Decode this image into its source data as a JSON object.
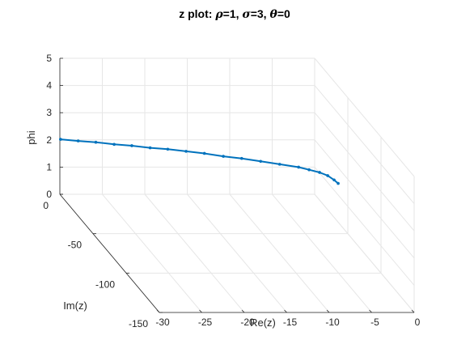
{
  "chart_data": {
    "type": "line",
    "title": {
      "prefix": "z plot: ",
      "sym_rho": "ρ",
      "rho_text": "=1, ",
      "sym_sigma": "σ",
      "sigma_text": "=3, ",
      "sym_theta": "θ",
      "theta_text": "=0"
    },
    "xlabel": "Re(z)",
    "ylabel": "Im(z)",
    "zlabel": "phi",
    "xlim": [
      -30,
      0
    ],
    "ylim": [
      -150,
      0
    ],
    "zlim": [
      0,
      5
    ],
    "x_ticks": [
      "-30",
      "-25",
      "-20",
      "-15",
      "-10",
      "-5",
      "0"
    ],
    "y_ticks": [
      "-150",
      "-100",
      "-50",
      "0"
    ],
    "z_ticks": [
      "0",
      "1",
      "2",
      "3",
      "4",
      "5"
    ],
    "grid": true,
    "series": [
      {
        "color": "#0072bd",
        "marker": ".",
        "x": [
          -30,
          -28,
          -26,
          -24,
          -22,
          -20,
          -18,
          -16,
          -14,
          -12,
          -10,
          -8,
          -6,
          -4,
          -3,
          -2,
          -1.2,
          -0.6,
          -0.2
        ],
        "y": [
          -1,
          -2,
          -3,
          -5,
          -6,
          -8,
          -9,
          -11,
          -13,
          -16,
          -18,
          -21,
          -24,
          -27,
          -30,
          -33,
          -35,
          -37,
          -38
        ],
        "z": [
          2.05,
          2.02,
          2.0,
          1.98,
          1.96,
          1.94,
          1.92,
          1.9,
          1.88,
          1.86,
          1.84,
          1.82,
          1.8,
          1.78,
          1.77,
          1.76,
          1.7,
          1.6,
          1.5
        ]
      }
    ]
  }
}
